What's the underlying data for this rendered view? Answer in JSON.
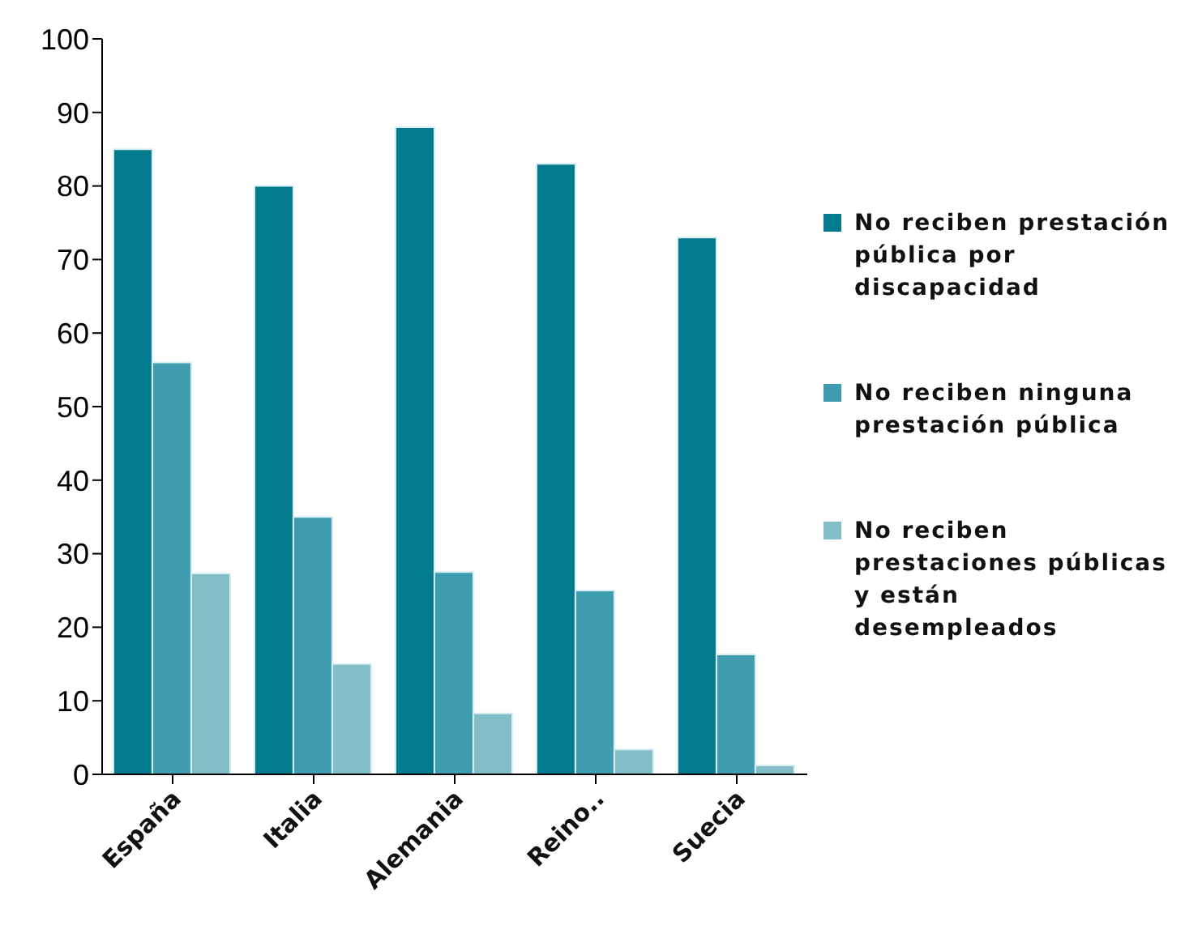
{
  "chart_data": {
    "type": "bar",
    "categories": [
      "España",
      "Italia",
      "Alemania",
      "Reino..",
      "Suecia"
    ],
    "series": [
      {
        "name": "No reciben prestación pública por discapacidad",
        "color": "#027b8f",
        "values": [
          85,
          80,
          88,
          83,
          73
        ]
      },
      {
        "name": "No reciben ninguna prestación pública",
        "color": "#409daf",
        "values": [
          56,
          35,
          27.5,
          25,
          16.3
        ]
      },
      {
        "name": "No reciben prestaciones públicas y están desempleados",
        "color": "#82bec8",
        "values": [
          27.3,
          15,
          8.3,
          3.4,
          1.2
        ]
      }
    ],
    "ylim": [
      0,
      100
    ],
    "yticks": [
      0,
      10,
      20,
      30,
      40,
      50,
      60,
      70,
      80,
      90,
      100
    ],
    "grid": false,
    "legend": "right"
  }
}
